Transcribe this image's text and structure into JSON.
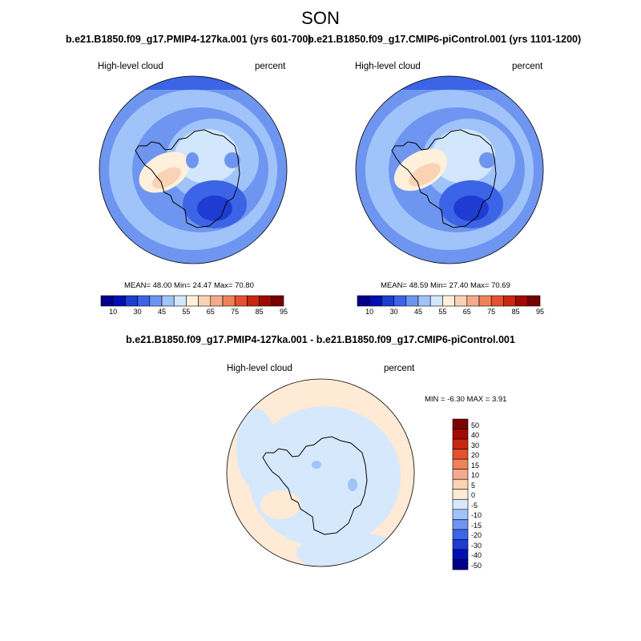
{
  "title": "SON",
  "panels": [
    {
      "title": "b.e21.B1850.f09_g17.PMIP4-127ka.001 (yrs 601-700)",
      "variable": "High-level cloud",
      "units": "percent",
      "stats": "MEAN=  48.00  Min=  24.47  Max=  70.80",
      "colorbar_labels": [
        "10",
        "30",
        "45",
        "55",
        "65",
        "75",
        "85",
        "95"
      ]
    },
    {
      "title": "b.e21.B1850.f09_g17.CMIP6-piControl.001 (yrs 1101-1200)",
      "variable": "High-level cloud",
      "units": "percent",
      "stats": "MEAN=  48.59  Min=  27.40  Max=  70.69",
      "colorbar_labels": [
        "10",
        "30",
        "45",
        "55",
        "65",
        "75",
        "85",
        "95"
      ]
    }
  ],
  "diff_panel": {
    "title": "b.e21.B1850.f09_g17.PMIP4-127ka.001 - b.e21.B1850.f09_g17.CMIP6-piControl.001",
    "variable": "High-level cloud",
    "units": "percent",
    "stats": "MIN =  -6.30 MAX =   3.91",
    "colorbar_labels": [
      "50",
      "40",
      "30",
      "20",
      "15",
      "10",
      "5",
      "0",
      "-5",
      "-10",
      "-15",
      "-20",
      "-30",
      "-40",
      "-50"
    ]
  },
  "colors": {
    "abs_scale": [
      "#00008b",
      "#0010b4",
      "#1e3cd2",
      "#3c64e6",
      "#6e96f0",
      "#a0c3fa",
      "#d2e6fc",
      "#fff0dc",
      "#fad2b4",
      "#f5aa8c",
      "#f0825a",
      "#e6502d",
      "#c8280f",
      "#a00a00",
      "#780000"
    ],
    "diff_scale": [
      "#7d0000",
      "#a00a00",
      "#c8280f",
      "#e6502d",
      "#f0825a",
      "#f5aa8c",
      "#fad2b4",
      "#ffead6",
      "#d6e8fc",
      "#a0c3fa",
      "#6e96f0",
      "#3c64e6",
      "#1e3cd2",
      "#0010b4",
      "#00008b"
    ]
  }
}
